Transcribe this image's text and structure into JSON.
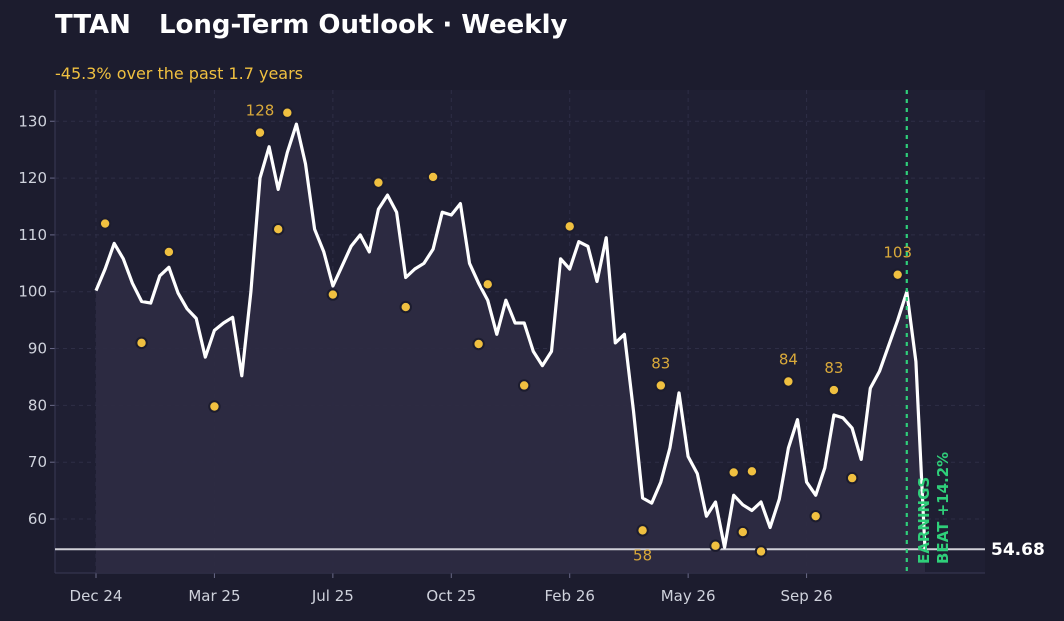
{
  "header": {
    "ticker": "TTAN",
    "title": "Long-Term Outlook · Weekly",
    "subtitle": "-45.3% over the past 1.7 years"
  },
  "colors": {
    "background": "#1c1c2e",
    "line": "#ffffff",
    "dots": "#f0c040",
    "annotation": "#d9a93a",
    "event": "#2fcf7a",
    "reference": "#d0d0d8",
    "grid": "#2e2e46"
  },
  "chart_data": {
    "type": "line",
    "title": "Long-Term Outlook · Weekly",
    "xlabel": "",
    "ylabel": "",
    "ylim": [
      50.5,
      135.5
    ],
    "yticks": [
      60,
      70,
      80,
      90,
      100,
      110,
      120,
      130
    ],
    "xticks": [
      {
        "label": "Dec 24",
        "week": 0
      },
      {
        "label": "Mar 25",
        "week": 13
      },
      {
        "label": "Jul 25",
        "week": 26
      },
      {
        "label": "Oct 25",
        "week": 39
      },
      {
        "label": "Feb 26",
        "week": 52
      },
      {
        "label": "May 26",
        "week": 65
      },
      {
        "label": "Sep 26",
        "week": 78
      }
    ],
    "grid": true,
    "series": [
      {
        "values": [
          100.2,
          104.0,
          108.5,
          105.8,
          101.5,
          98.3,
          98.0,
          102.8,
          104.3,
          99.8,
          97.0,
          95.3,
          88.5,
          93.2,
          94.5,
          95.5,
          85.2,
          100.0,
          120.0,
          125.5,
          118.0,
          124.5,
          129.5,
          122.5,
          111.0,
          107.0,
          101.0,
          104.5,
          108.0,
          110.0,
          107.0,
          114.5,
          117.0,
          114.0,
          102.5,
          104.0,
          105.0,
          107.5,
          114.0,
          113.5,
          115.5,
          105.0,
          101.5,
          98.5,
          92.5,
          98.5,
          94.5,
          94.5,
          89.5,
          87.0,
          89.5,
          105.8,
          104.0,
          108.8,
          108.0,
          101.8,
          109.5,
          91.0,
          92.5,
          79.0,
          63.7,
          62.8,
          66.5,
          72.5,
          82.2,
          71.0,
          68.0,
          60.5,
          63.0,
          55.0,
          64.2,
          62.5,
          61.5,
          63.0,
          58.5,
          63.5,
          72.5,
          77.5,
          66.5,
          64.2,
          69.0,
          78.3,
          77.8,
          76.0,
          70.5,
          83.0,
          86.0,
          90.5,
          95.0,
          100.0,
          87.7,
          54.68
        ]
      }
    ],
    "markers": [
      {
        "week": 1,
        "value": 112.0
      },
      {
        "week": 5,
        "value": 91.0
      },
      {
        "week": 8,
        "value": 107.0
      },
      {
        "week": 13,
        "value": 79.8
      },
      {
        "week": 18,
        "value": 128.0,
        "label": "128"
      },
      {
        "week": 20,
        "value": 111.0
      },
      {
        "week": 21,
        "value": 131.5
      },
      {
        "week": 26,
        "value": 99.5
      },
      {
        "week": 31,
        "value": 119.2
      },
      {
        "week": 34,
        "value": 97.3
      },
      {
        "week": 37,
        "value": 120.2
      },
      {
        "week": 42,
        "value": 90.8
      },
      {
        "week": 43,
        "value": 101.3
      },
      {
        "week": 47,
        "value": 83.5
      },
      {
        "week": 52,
        "value": 111.5
      },
      {
        "week": 60,
        "value": 58.0,
        "label": "58"
      },
      {
        "week": 62,
        "value": 83.5,
        "label": "83"
      },
      {
        "week": 68,
        "value": 55.3
      },
      {
        "week": 70,
        "value": 68.2
      },
      {
        "week": 71,
        "value": 57.7
      },
      {
        "week": 72,
        "value": 68.4
      },
      {
        "week": 73,
        "value": 54.3
      },
      {
        "week": 76,
        "value": 84.2,
        "label": "84"
      },
      {
        "week": 79,
        "value": 60.5
      },
      {
        "week": 81,
        "value": 82.7,
        "label": "83"
      },
      {
        "week": 83,
        "value": 67.2
      },
      {
        "week": 88,
        "value": 103.0,
        "label": "103"
      }
    ],
    "last_value": 54.68,
    "last_value_label": "54.68",
    "event": {
      "week": 89,
      "label_line1": "EARNINGS",
      "label_line2": "BEAT +14.2%"
    }
  }
}
